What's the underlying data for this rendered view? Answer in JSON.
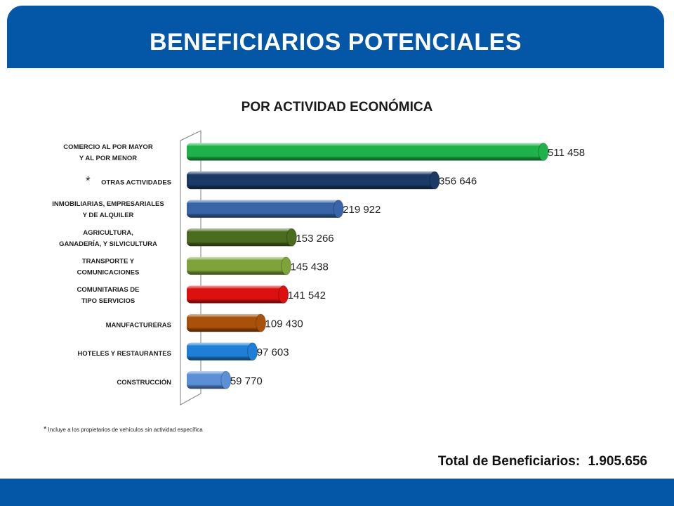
{
  "header": {
    "title": "BENEFICIARIOS POTENCIALES"
  },
  "chart_data": {
    "type": "bar",
    "orientation": "horizontal",
    "title": "POR ACTIVIDAD ECONÓMICA",
    "categories": [
      [
        "COMERCIO AL POR MAYOR",
        "Y AL POR MENOR"
      ],
      [
        "OTRAS ACTIVIDADES"
      ],
      [
        "INMOBILIARIAS, EMPRESARIALES",
        "Y DE ALQUILER"
      ],
      [
        "AGRICULTURA,",
        "GANADERÍA, Y SILVICULTURA"
      ],
      [
        "TRANSPORTE Y",
        "COMUNICACIONES"
      ],
      [
        "COMUNITARIAS DE",
        "TIPO SERVICIOS"
      ],
      [
        "MANUFACTURERAS"
      ],
      [
        "HOTELES Y RESTAURANTES"
      ],
      [
        "CONSTRUCCIÓN"
      ]
    ],
    "values": [
      511458,
      356646,
      219922,
      153266,
      145438,
      141542,
      109430,
      97603,
      59770
    ],
    "data_labels": [
      "511 458",
      "356 646",
      "219 922",
      "153 266",
      "145 438",
      "141 542",
      "109 430",
      "97 603",
      "59 770"
    ],
    "colors": [
      "#1fb24a",
      "#1b3a66",
      "#3a64a8",
      "#4b6b1e",
      "#7fa33a",
      "#dd1010",
      "#a9510b",
      "#1f7fd6",
      "#5b8fd6"
    ],
    "asterisk_category_index": 1,
    "asterisk": "*",
    "xlim": [
      0,
      511458
    ],
    "legend": "none",
    "grid": false
  },
  "footnote": {
    "mark": "*",
    "text": "Incluye a los propietarios de vehículos sin actividad específica"
  },
  "total": {
    "label": "Total de Beneficiarios:",
    "value": "1.905.656"
  }
}
